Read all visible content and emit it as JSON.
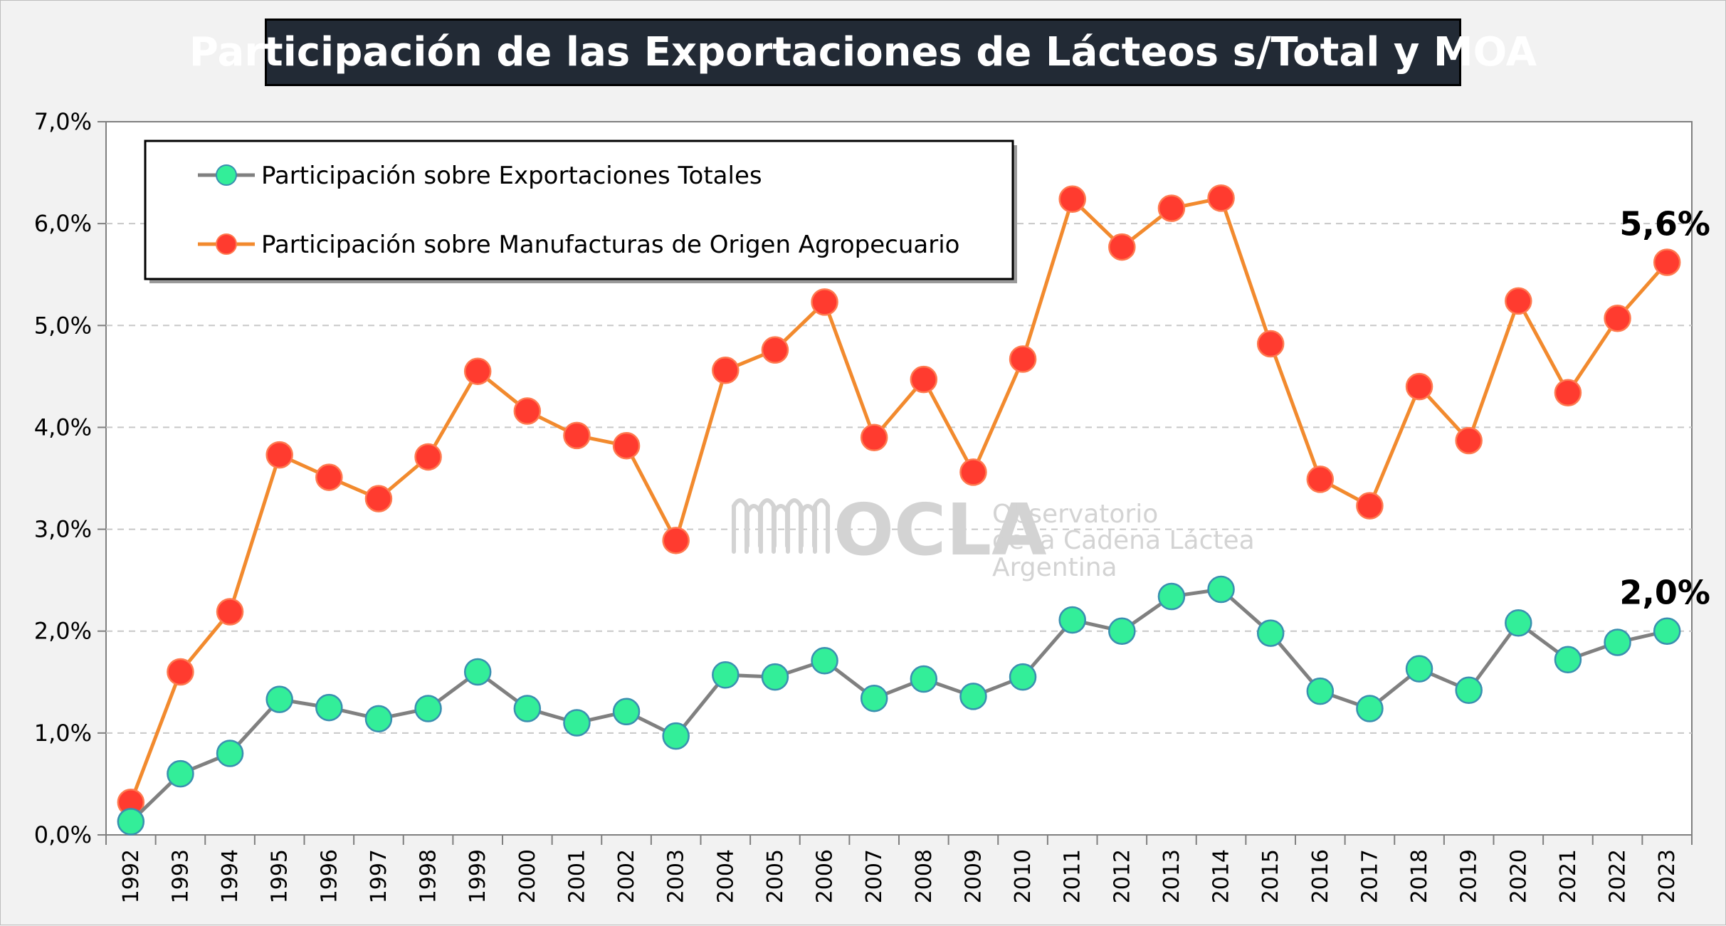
{
  "chart_data": {
    "type": "line",
    "title": "Participación de las Exportaciones de Lácteos s/Total y MOA",
    "x": [
      "1992",
      "1993",
      "1994",
      "1995",
      "1996",
      "1997",
      "1998",
      "1999",
      "2000",
      "2001",
      "2002",
      "2003",
      "2004",
      "2005",
      "2006",
      "2007",
      "2008",
      "2009",
      "2010",
      "2011",
      "2012",
      "2013",
      "2014",
      "2015",
      "2016",
      "2017",
      "2018",
      "2019",
      "2020",
      "2021",
      "2022",
      "2023"
    ],
    "ylim": [
      0,
      7
    ],
    "yticks": [
      "0,0%",
      "1,0%",
      "2,0%",
      "3,0%",
      "4,0%",
      "5,0%",
      "6,0%",
      "7,0%"
    ],
    "grid": "horizontal dashed",
    "legend_position": "top-left",
    "series": [
      {
        "name": "Participación sobre Exportaciones Totales",
        "color": "#808080",
        "marker_color": "#33ee99",
        "values": [
          0.13,
          0.6,
          0.8,
          1.33,
          1.25,
          1.14,
          1.24,
          1.6,
          1.24,
          1.1,
          1.21,
          0.97,
          1.57,
          1.55,
          1.71,
          1.34,
          1.53,
          1.36,
          1.55,
          2.11,
          2.0,
          2.34,
          2.41,
          1.98,
          1.41,
          1.24,
          1.63,
          1.42,
          2.08,
          1.72,
          1.89,
          2.0
        ]
      },
      {
        "name": "Participación sobre Manufacturas de Origen Agropecuario",
        "color": "#f28a2e",
        "marker_color": "#ff3b2f",
        "values": [
          0.32,
          1.6,
          2.19,
          3.73,
          3.51,
          3.3,
          3.71,
          4.55,
          4.16,
          3.92,
          3.82,
          2.89,
          4.56,
          4.76,
          5.23,
          3.9,
          4.47,
          3.56,
          4.67,
          6.24,
          5.77,
          6.15,
          6.25,
          4.82,
          3.49,
          3.23,
          4.4,
          3.87,
          5.24,
          4.34,
          5.07,
          5.62
        ]
      }
    ],
    "annotations": [
      {
        "text": "5,6%",
        "series": 1,
        "at": "2023"
      },
      {
        "text": "2,0%",
        "series": 0,
        "at": "2023"
      }
    ]
  },
  "watermark": {
    "logo": "OCLA",
    "line1": "Observatorio",
    "line2": "de la Cadena Láctea",
    "line3": "Argentina",
    "icon": "waveform-icon"
  }
}
